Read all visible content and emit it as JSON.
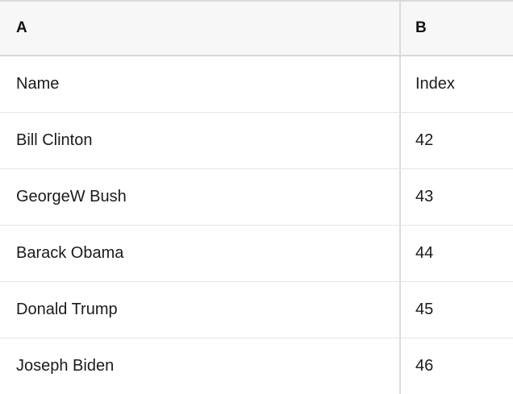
{
  "table": {
    "column_headers": [
      {
        "label": "A"
      },
      {
        "label": "B"
      }
    ],
    "rows": [
      [
        "Name",
        "Index"
      ],
      [
        "Bill Clinton",
        "42"
      ],
      [
        "GeorgeW Bush",
        "43"
      ],
      [
        "Barack Obama",
        "44"
      ],
      [
        "Donald Trump",
        "45"
      ],
      [
        "Joseph Biden",
        "46"
      ]
    ]
  },
  "colors": {
    "header_background": "#f7f7f7",
    "header_border": "#d8d8d8",
    "row_border": "#e5e5e5",
    "column_border": "#dcdcdc",
    "text": "#1b1b1b"
  }
}
